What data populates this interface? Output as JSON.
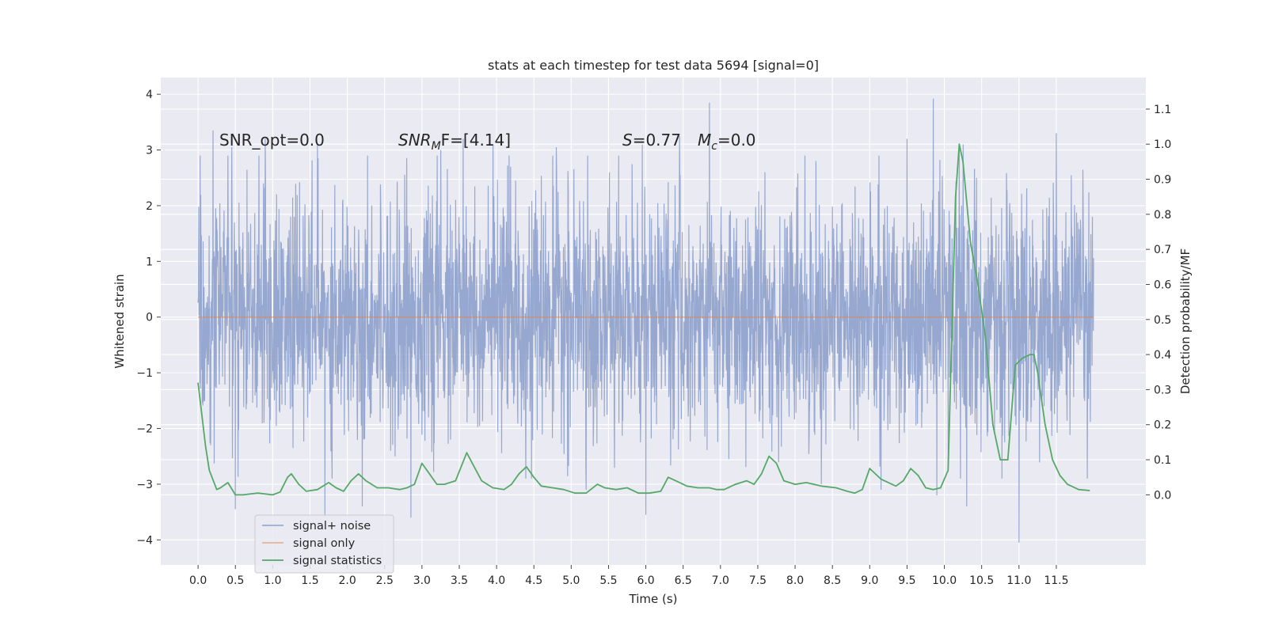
{
  "chart_data": {
    "type": "line",
    "title": "stats at each timestep for test data 5694 [signal=0]",
    "xlabel": "Time (s)",
    "ylabel": "Whitened strain",
    "y2label": "Detection probability/MF",
    "xlim": [
      -0.5,
      12.7
    ],
    "ylim": [
      -4.45,
      4.3
    ],
    "y2lim": [
      -0.2,
      1.19
    ],
    "xticks": [
      0.0,
      0.5,
      1.0,
      1.5,
      2.0,
      2.5,
      3.0,
      3.5,
      4.0,
      4.5,
      5.0,
      5.5,
      6.0,
      6.5,
      7.0,
      7.5,
      8.0,
      8.5,
      9.0,
      9.5,
      10.0,
      10.5,
      11.0,
      11.5
    ],
    "xtick_labels": [
      "0.0",
      "0.5",
      "1.0",
      "1.5",
      "2.0",
      "2.5",
      "3.0",
      "3.5",
      "4.0",
      "4.5",
      "5.0",
      "5.5",
      "6.0",
      "6.5",
      "7.0",
      "7.5",
      "8.0",
      "8.5",
      "9.0",
      "9.5",
      "10.0",
      "10.5",
      "11.0",
      "11.5"
    ],
    "yticks": [
      4,
      3,
      2,
      1,
      0,
      -1,
      -2,
      -3,
      -4
    ],
    "ytick_labels": [
      "4",
      "3",
      "2",
      "1",
      "0",
      "−1",
      "−2",
      "−3",
      "−4"
    ],
    "y2ticks": [
      1.1,
      1.0,
      0.9,
      0.8,
      0.7,
      0.6,
      0.5,
      0.4,
      0.3,
      0.2,
      0.1,
      0.0
    ],
    "y2tick_labels": [
      "1.1",
      "1.0",
      "0.9",
      "0.8",
      "0.7",
      "0.6",
      "0.5",
      "0.4",
      "0.3",
      "0.2",
      "0.1",
      "0.0"
    ],
    "grid": true,
    "legend_position": "lower-left",
    "annotations": {
      "snr_opt": "SNR_opt=0.0",
      "snr_mf_symbol": "SNR",
      "snr_mf_sub": "M",
      "snr_mf_tail": "F=[4.14]",
      "s_symbol": "S",
      "s_value": "=0.77",
      "mc_symbol": "M",
      "mc_sub": "c",
      "mc_value": "=0.0"
    },
    "series": [
      {
        "name": "signal+ noise",
        "color": "#8ea1cc",
        "axis": "left",
        "x_range": [
          0.0,
          12.0
        ],
        "typical_range": [
          -1.5,
          1.5
        ],
        "peaks": [
          {
            "x": 0.2,
            "y": 3.35
          },
          {
            "x": 0.45,
            "y": 3.05
          },
          {
            "x": 0.9,
            "y": 3.2
          },
          {
            "x": 1.6,
            "y": 3.1
          },
          {
            "x": 2.2,
            "y": 3.05
          },
          {
            "x": 3.25,
            "y": 3.0
          },
          {
            "x": 3.55,
            "y": 3.2
          },
          {
            "x": 3.95,
            "y": 3.1
          },
          {
            "x": 4.8,
            "y": 3.05
          },
          {
            "x": 5.95,
            "y": 3.1
          },
          {
            "x": 6.45,
            "y": 3.25
          },
          {
            "x": 6.85,
            "y": 3.85
          },
          {
            "x": 9.5,
            "y": 3.2
          },
          {
            "x": 9.85,
            "y": 3.92
          },
          {
            "x": 10.2,
            "y": 3.0
          },
          {
            "x": 10.25,
            "y": 3.1
          },
          {
            "x": 11.5,
            "y": 3.3
          }
        ],
        "troughs": [
          {
            "x": 0.5,
            "y": -3.45
          },
          {
            "x": 1.7,
            "y": -3.6
          },
          {
            "x": 2.2,
            "y": -3.4
          },
          {
            "x": 2.85,
            "y": -3.6
          },
          {
            "x": 5.2,
            "y": -3.1
          },
          {
            "x": 6.0,
            "y": -3.55
          },
          {
            "x": 8.35,
            "y": -3.0
          },
          {
            "x": 9.15,
            "y": -3.1
          },
          {
            "x": 9.9,
            "y": -3.2
          },
          {
            "x": 10.3,
            "y": -3.4
          },
          {
            "x": 11.0,
            "y": -4.05
          }
        ]
      },
      {
        "name": "signal only",
        "color": "#dd8452",
        "axis": "left",
        "x": [
          0.0,
          12.0
        ],
        "y": [
          0.0,
          0.0
        ]
      },
      {
        "name": "signal statistics",
        "color": "#55a868",
        "axis": "right",
        "x": [
          0.0,
          0.1,
          0.15,
          0.25,
          0.3,
          0.4,
          0.5,
          0.6,
          0.8,
          1.0,
          1.1,
          1.2,
          1.25,
          1.35,
          1.45,
          1.6,
          1.75,
          1.85,
          1.95,
          2.05,
          2.15,
          2.25,
          2.4,
          2.55,
          2.7,
          2.8,
          2.9,
          3.0,
          3.1,
          3.2,
          3.3,
          3.45,
          3.6,
          3.7,
          3.8,
          3.95,
          4.1,
          4.2,
          4.3,
          4.4,
          4.5,
          4.6,
          4.75,
          4.9,
          5.05,
          5.2,
          5.35,
          5.45,
          5.6,
          5.75,
          5.9,
          6.05,
          6.2,
          6.3,
          6.4,
          6.55,
          6.7,
          6.85,
          6.95,
          7.05,
          7.2,
          7.35,
          7.45,
          7.55,
          7.65,
          7.75,
          7.85,
          8.0,
          8.15,
          8.35,
          8.55,
          8.7,
          8.8,
          8.9,
          9.0,
          9.15,
          9.25,
          9.35,
          9.45,
          9.55,
          9.65,
          9.75,
          9.85,
          9.95,
          10.05,
          10.15,
          10.2,
          10.25,
          10.35,
          10.45,
          10.55,
          10.65,
          10.75,
          10.85,
          10.95,
          11.05,
          11.15,
          11.2,
          11.25,
          11.35,
          11.45,
          11.55,
          11.65,
          11.8,
          11.95
        ],
        "y": [
          0.32,
          0.14,
          0.07,
          0.015,
          0.02,
          0.035,
          0.0,
          0.0,
          0.005,
          0.0,
          0.008,
          0.05,
          0.06,
          0.03,
          0.01,
          0.015,
          0.035,
          0.02,
          0.01,
          0.04,
          0.06,
          0.04,
          0.02,
          0.02,
          0.015,
          0.02,
          0.03,
          0.09,
          0.06,
          0.03,
          0.03,
          0.04,
          0.12,
          0.08,
          0.04,
          0.02,
          0.015,
          0.03,
          0.06,
          0.08,
          0.05,
          0.025,
          0.02,
          0.015,
          0.005,
          0.005,
          0.03,
          0.02,
          0.015,
          0.02,
          0.005,
          0.005,
          0.01,
          0.05,
          0.04,
          0.025,
          0.02,
          0.02,
          0.015,
          0.015,
          0.03,
          0.04,
          0.03,
          0.06,
          0.11,
          0.09,
          0.04,
          0.03,
          0.035,
          0.025,
          0.02,
          0.01,
          0.005,
          0.015,
          0.075,
          0.045,
          0.035,
          0.025,
          0.04,
          0.075,
          0.055,
          0.02,
          0.015,
          0.02,
          0.07,
          0.85,
          1.0,
          0.95,
          0.72,
          0.6,
          0.45,
          0.2,
          0.1,
          0.1,
          0.37,
          0.39,
          0.4,
          0.4,
          0.35,
          0.2,
          0.1,
          0.055,
          0.03,
          0.015,
          0.012
        ]
      }
    ]
  }
}
